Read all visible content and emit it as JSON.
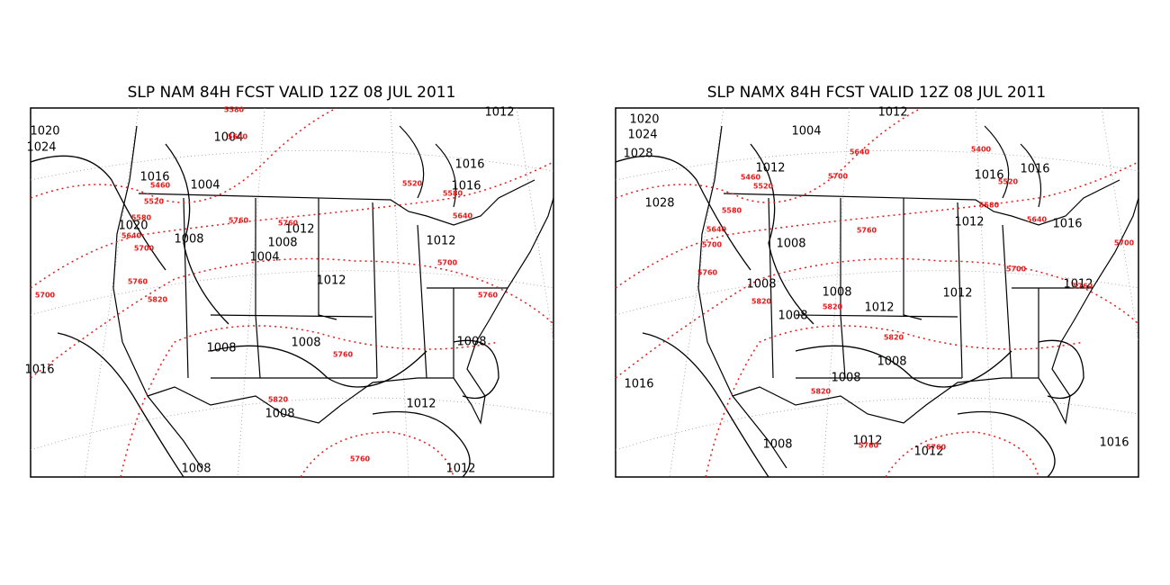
{
  "panels": [
    {
      "title": "SLP NAM 84H FCST VALID 12Z 08 JUL 2011",
      "isobar_labels": [
        "1020",
        "1024",
        "1004",
        "1016",
        "1004",
        "1020",
        "1008",
        "1008",
        "1012",
        "1004",
        "1012",
        "1012",
        "1016",
        "1016",
        "1012",
        "1008",
        "1008",
        "1008",
        "1012",
        "1008",
        "1008",
        "1012",
        "1016"
      ],
      "thickness_labels": [
        "5640",
        "5460",
        "5520",
        "5580",
        "5640",
        "5700",
        "5760",
        "5760",
        "5700",
        "5760",
        "5820",
        "5520",
        "5580",
        "5640",
        "5700",
        "5760",
        "5760",
        "5820",
        "5760",
        "5580"
      ]
    },
    {
      "title": "SLP NAMX 84H FCST VALID 12Z 08 JUL 2011",
      "isobar_labels": [
        "1020",
        "1024",
        "1028",
        "1028",
        "1004",
        "1012",
        "1012",
        "1016",
        "1016",
        "1016",
        "1012",
        "1008",
        "1008",
        "1008",
        "1008",
        "1012",
        "1012",
        "1012",
        "1008",
        "1008",
        "1016",
        "1008",
        "1012",
        "1016",
        "1012"
      ],
      "thickness_labels": [
        "5460",
        "5520",
        "5580",
        "5640",
        "5700",
        "5760",
        "5820",
        "5640",
        "5700",
        "5820",
        "5760",
        "5580",
        "5400",
        "5520",
        "5640",
        "5700",
        "5760",
        "5700",
        "5820",
        "5820",
        "5760",
        "5760"
      ]
    }
  ]
}
